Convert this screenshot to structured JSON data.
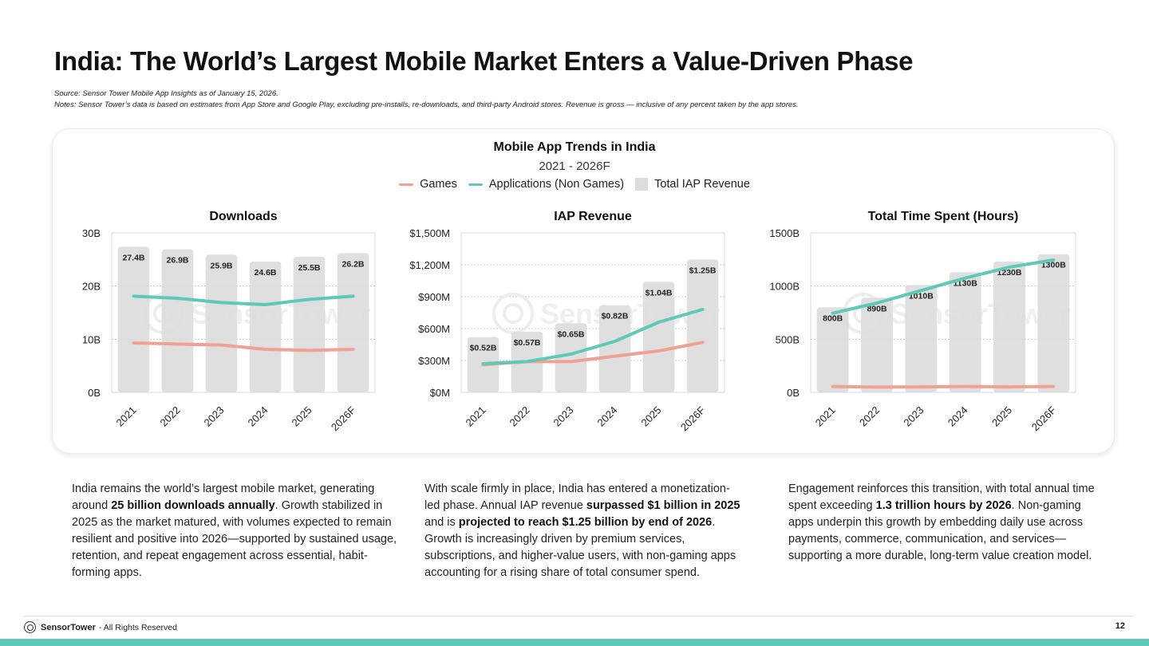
{
  "title": "India: The World’s Largest Mobile Market Enters a Value-Driven Phase",
  "source": "Source: Sensor Tower Mobile App Insights as of January 15, 2026.",
  "notes": "Notes: Sensor Tower’s data is based on estimates from App Store and Google Play, excluding pre-installs, re-downloads, and third-party Android stores. Revenue is gross — inclusive of any percent taken by the app stores.",
  "figure": {
    "title": "Mobile App Trends in India",
    "subtitle": "2021 - 2026F",
    "legend": [
      {
        "label": "Games",
        "color": "#f0a193"
      },
      {
        "label": "Applications (Non Games)",
        "color": "#5ec9b8"
      },
      {
        "label": "Total IAP Revenue",
        "color": "#dcdcdc"
      }
    ],
    "watermark": "SensorTower"
  },
  "chart_data": [
    {
      "type": "bar",
      "title": "Downloads",
      "categories": [
        "2021",
        "2022",
        "2023",
        "2024",
        "2025",
        "2026F"
      ],
      "yticks": [
        "0B",
        "10B",
        "20B",
        "30B"
      ],
      "ylim": [
        0,
        30
      ],
      "series": [
        {
          "name": "Total",
          "kind": "bar",
          "values": [
            27.4,
            26.9,
            25.9,
            24.6,
            25.5,
            26.2
          ],
          "labels": [
            "27.4B",
            "26.9B",
            "25.9B",
            "24.6B",
            "25.5B",
            "26.2B"
          ]
        },
        {
          "name": "Games",
          "kind": "line",
          "values": [
            9.3,
            9.1,
            8.9,
            8.1,
            7.9,
            8.1
          ]
        },
        {
          "name": "Applications (Non Games)",
          "kind": "line",
          "values": [
            18.1,
            17.7,
            16.9,
            16.5,
            17.5,
            18.1
          ]
        }
      ]
    },
    {
      "type": "bar",
      "title": "IAP Revenue",
      "categories": [
        "2021",
        "2022",
        "2023",
        "2024",
        "2025",
        "2026F"
      ],
      "yticks": [
        "$0M",
        "$300M",
        "$600M",
        "$900M",
        "$1,200M",
        "$1,500M"
      ],
      "ylim": [
        0,
        1500
      ],
      "series": [
        {
          "name": "Total IAP Revenue",
          "kind": "bar",
          "values": [
            520,
            570,
            650,
            820,
            1040,
            1250
          ],
          "labels": [
            "$0.52B",
            "$0.57B",
            "$0.65B",
            "$0.82B",
            "$1.04B",
            "$1.25B"
          ]
        },
        {
          "name": "Games",
          "kind": "line",
          "values": [
            260,
            290,
            290,
            340,
            390,
            470
          ]
        },
        {
          "name": "Applications (Non Games)",
          "kind": "line",
          "values": [
            270,
            290,
            360,
            480,
            660,
            780
          ]
        }
      ]
    },
    {
      "type": "bar",
      "title": "Total Time Spent (Hours)",
      "categories": [
        "2021",
        "2022",
        "2023",
        "2024",
        "2025",
        "2026F"
      ],
      "yticks": [
        "0B",
        "500B",
        "1000B",
        "1500B"
      ],
      "ylim": [
        0,
        1500
      ],
      "series": [
        {
          "name": "Total",
          "kind": "bar",
          "values": [
            800,
            890,
            1010,
            1130,
            1230,
            1300
          ],
          "labels": [
            "800B",
            "890B",
            "1010B",
            "1130B",
            "1230B",
            "1300B"
          ]
        },
        {
          "name": "Games",
          "kind": "line",
          "values": [
            55,
            50,
            52,
            55,
            52,
            55
          ]
        },
        {
          "name": "Applications (Non Games)",
          "kind": "line",
          "values": [
            745,
            840,
            958,
            1075,
            1178,
            1245
          ]
        }
      ]
    }
  ],
  "paragraphs": [
    [
      {
        "t": "India remains the world’s largest mobile market, generating around "
      },
      {
        "t": "25 billion downloads annually",
        "b": true
      },
      {
        "t": ". Growth stabilized in 2025 as the market matured, with volumes expected to remain resilient and positive into 2026—supported by sustained usage, retention, and repeat engagement across essential, habit-forming apps."
      }
    ],
    [
      {
        "t": "With scale firmly in place, India has entered a monetization-led phase. Annual IAP revenue "
      },
      {
        "t": "surpassed $1 billion in 2025",
        "b": true
      },
      {
        "t": " and is "
      },
      {
        "t": "projected to reach $1.25 billion by end of 2026",
        "b": true
      },
      {
        "t": ". Growth is increasingly driven by premium services, subscriptions, and higher-value users, with non-gaming apps accounting for a rising share of total consumer spend."
      }
    ],
    [
      {
        "t": "Engagement reinforces this transition, with total annual time spent exceeding "
      },
      {
        "t": "1.3 trillion hours by 2026",
        "b": true
      },
      {
        "t": ". Non-gaming apps underpin this growth by embedding daily use across payments, commerce, communication, and services—supporting a more durable, long-term value creation model."
      }
    ]
  ],
  "footer": {
    "brand": "SensorTower",
    "rights": " - All Rights Reserved",
    "page": "12"
  }
}
